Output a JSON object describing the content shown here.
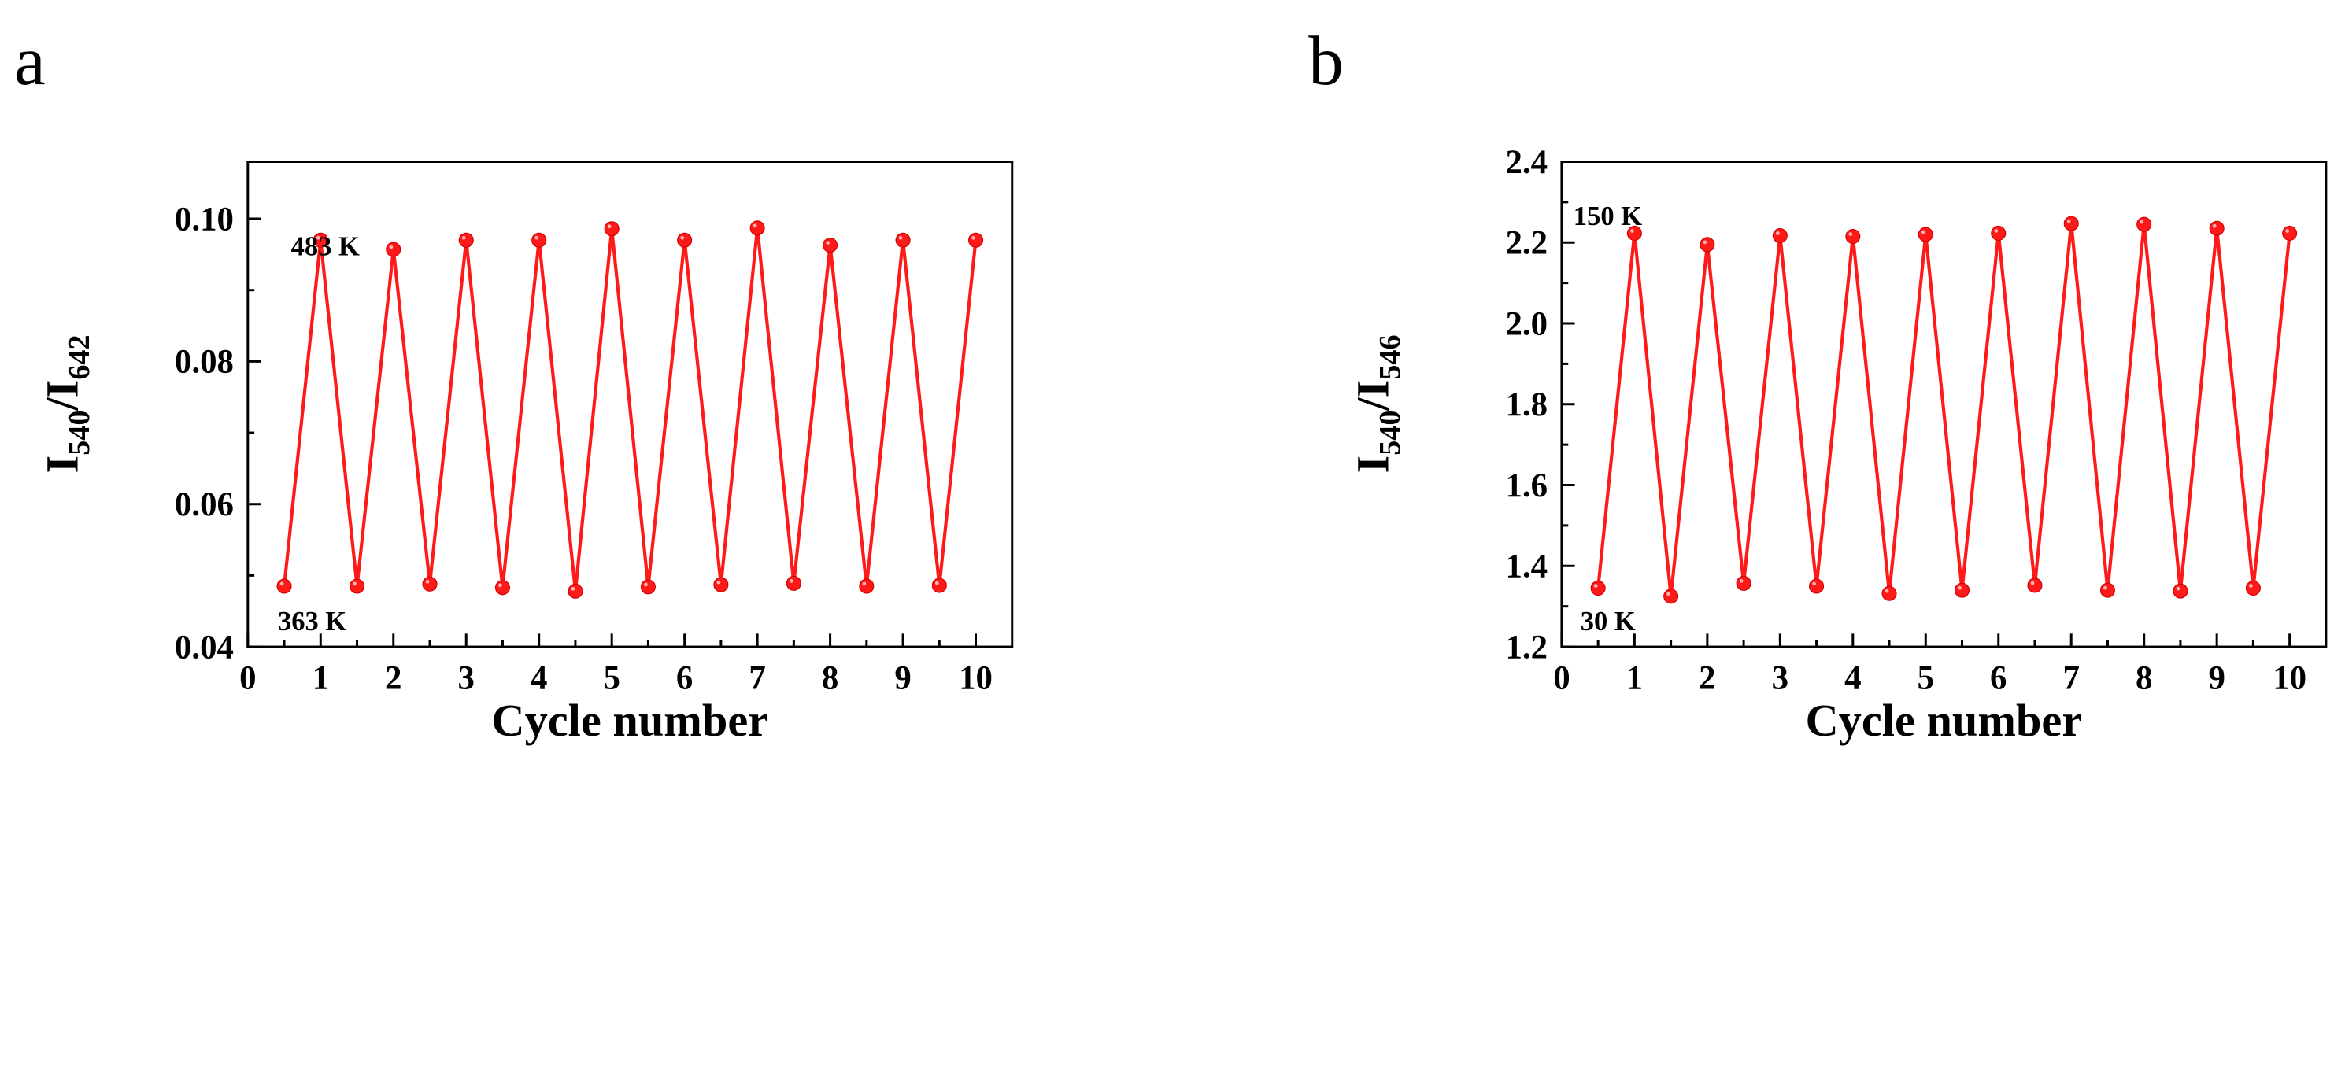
{
  "colors": {
    "series": "#ff1a1a",
    "axis": "#000000"
  },
  "chart_data": [
    {
      "panel": "a",
      "type": "line",
      "title": "",
      "xlabel": "Cycle number",
      "ylabel_main": "I",
      "ylabel_sub1": "540",
      "ylabel_sep": "/I",
      "ylabel_sub2": "642",
      "xlim": [
        0,
        10.5
      ],
      "ylim": [
        0.04,
        0.108
      ],
      "xticks": [
        0,
        1,
        2,
        3,
        4,
        5,
        6,
        7,
        8,
        9,
        10
      ],
      "xtick_labels": [
        "0",
        "1",
        "2",
        "3",
        "4",
        "5",
        "6",
        "7",
        "8",
        "9",
        "10"
      ],
      "yticks": [
        0.04,
        0.06,
        0.08,
        0.1
      ],
      "ytick_labels": [
        "0.04",
        "0.06",
        "0.08",
        "0.10"
      ],
      "annotations": [
        "483 K",
        "363 K"
      ],
      "series": [
        {
          "name": "I540/I642",
          "x": [
            0.5,
            1,
            1.5,
            2,
            2.5,
            3,
            3.5,
            4,
            4.5,
            5,
            5.5,
            6,
            6.5,
            7,
            7.5,
            8,
            8.5,
            9,
            9.5,
            10
          ],
          "y": [
            0.0485,
            0.097,
            0.0485,
            0.0957,
            0.0488,
            0.097,
            0.0483,
            0.097,
            0.0478,
            0.0986,
            0.0484,
            0.097,
            0.0487,
            0.0987,
            0.0489,
            0.0963,
            0.0485,
            0.097,
            0.0486,
            0.097
          ]
        }
      ]
    },
    {
      "panel": "b",
      "type": "line",
      "title": "",
      "xlabel": "Cycle number",
      "ylabel_main": "I",
      "ylabel_sub1": "540",
      "ylabel_sep": "/I",
      "ylabel_sub2": "546",
      "xlim": [
        0,
        10.5
      ],
      "ylim": [
        1.2,
        2.4
      ],
      "xticks": [
        0,
        1,
        2,
        3,
        4,
        5,
        6,
        7,
        8,
        9,
        10
      ],
      "xtick_labels": [
        "0",
        "1",
        "2",
        "3",
        "4",
        "5",
        "6",
        "7",
        "8",
        "9",
        "10"
      ],
      "yticks": [
        1.2,
        1.4,
        1.6,
        1.8,
        2.0,
        2.2,
        2.4
      ],
      "ytick_labels": [
        "1.2",
        "1.4",
        "1.6",
        "1.8",
        "2.0",
        "2.2",
        "2.4"
      ],
      "annotations": [
        "150 K",
        "30 K"
      ],
      "series": [
        {
          "name": "I540/I546",
          "x": [
            0.5,
            1,
            1.5,
            2,
            2.5,
            3,
            3.5,
            4,
            4.5,
            5,
            5.5,
            6,
            6.5,
            7,
            7.5,
            8,
            8.5,
            9,
            9.5,
            10
          ],
          "y": [
            1.345,
            2.223,
            1.325,
            2.195,
            1.357,
            2.217,
            1.35,
            2.215,
            1.332,
            2.22,
            1.34,
            2.223,
            1.352,
            2.247,
            1.34,
            2.245,
            1.338,
            2.235,
            1.345,
            2.223
          ]
        }
      ]
    }
  ]
}
